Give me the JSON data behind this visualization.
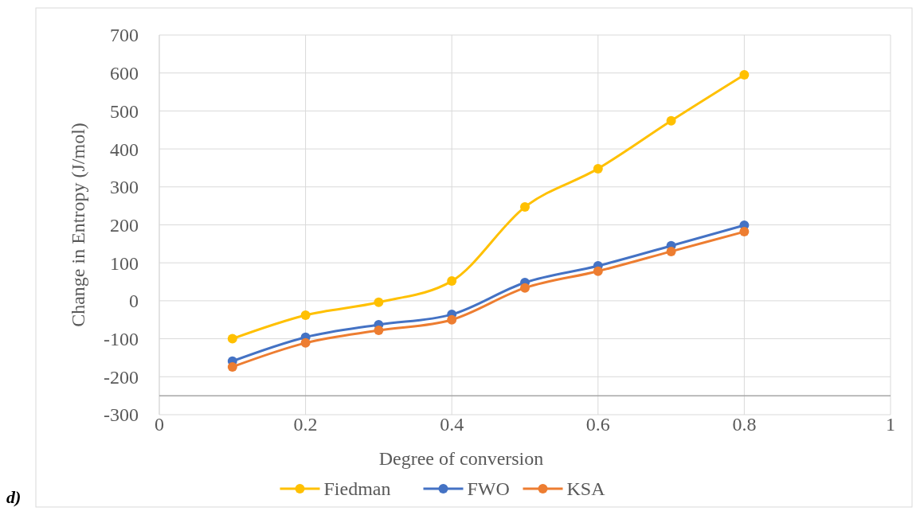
{
  "chart_data": {
    "type": "line",
    "x": [
      0.1,
      0.2,
      0.3,
      0.4,
      0.5,
      0.6,
      0.7,
      0.8
    ],
    "series": [
      {
        "name": "Fiedman",
        "color": "#ffc000",
        "values": [
          -100,
          -38,
          -4,
          52,
          247,
          348,
          474,
          595
        ]
      },
      {
        "name": "FWO",
        "color": "#4472c4",
        "values": [
          -159,
          -96,
          -63,
          -36,
          48,
          92,
          145,
          199
        ]
      },
      {
        "name": "KSA",
        "color": "#ed7d31",
        "values": [
          -174,
          -111,
          -78,
          -50,
          34,
          78,
          130,
          182
        ]
      }
    ],
    "xlabel": "Degree of conversion",
    "ylabel": "Change in Entropy (J/mol)",
    "xlim": [
      0,
      1
    ],
    "xticks": [
      0,
      0.2,
      0.4,
      0.6,
      0.8,
      1
    ],
    "ylim": [
      -300,
      700
    ],
    "yticks": [
      -300,
      -200,
      -100,
      0,
      100,
      200,
      300,
      400,
      500,
      600,
      700
    ],
    "ref_lines": [
      {
        "axis": "y",
        "value": -250,
        "color": "#a6a6a6"
      }
    ],
    "annotations": [
      "d)"
    ],
    "grid": true,
    "legend": "bottom",
    "marker": "circle",
    "line_style": "solid"
  }
}
